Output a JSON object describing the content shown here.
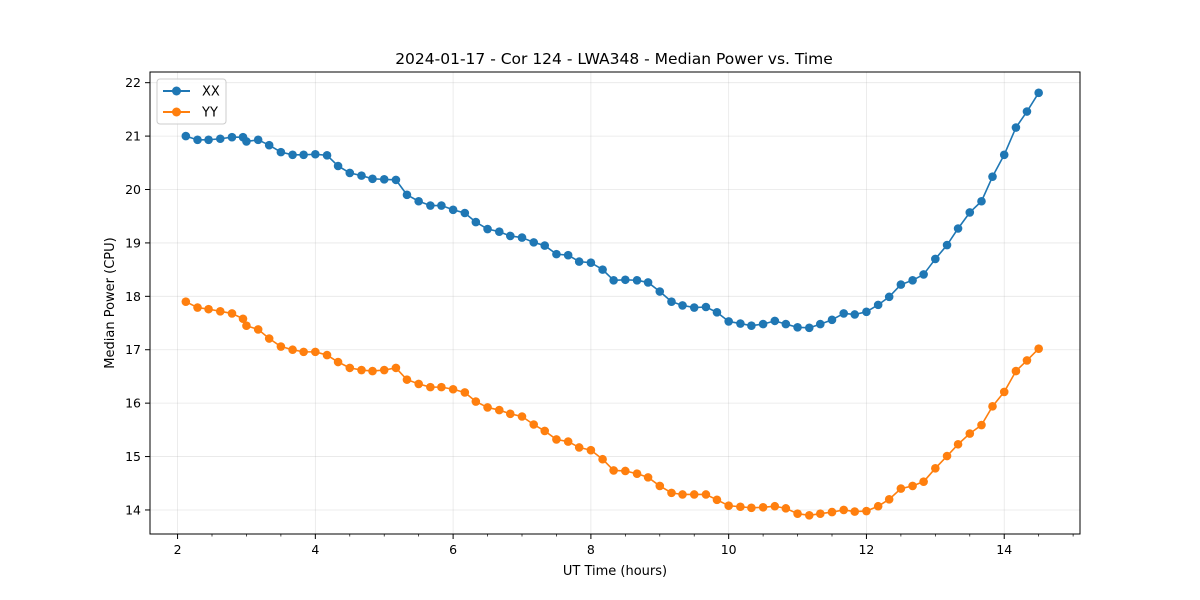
{
  "chart_data": {
    "type": "line",
    "title": "2024-01-17 - Cor 124 - LWA348 - Median Power vs. Time",
    "xlabel": "UT Time (hours)",
    "ylabel": "Median Power (CPU)",
    "xlim": [
      1.6,
      15.1
    ],
    "ylim": [
      13.55,
      22.2
    ],
    "xticks": [
      2,
      4,
      6,
      8,
      10,
      12,
      14
    ],
    "xtick_labels": [
      "2",
      "4",
      "6",
      "8",
      "10",
      "12",
      "14"
    ],
    "yticks": [
      14,
      15,
      16,
      17,
      18,
      19,
      20,
      21,
      22
    ],
    "ytick_labels": [
      "14",
      "15",
      "16",
      "17",
      "18",
      "19",
      "20",
      "21",
      "22"
    ],
    "grid": true,
    "legend_position": "top-left",
    "x": [
      2.12,
      2.29,
      2.45,
      2.62,
      2.79,
      2.95,
      3.0,
      3.17,
      3.33,
      3.5,
      3.67,
      3.83,
      4.0,
      4.17,
      4.33,
      4.5,
      4.67,
      4.83,
      5.0,
      5.17,
      5.33,
      5.5,
      5.67,
      5.83,
      6.0,
      6.17,
      6.33,
      6.5,
      6.67,
      6.83,
      7.0,
      7.17,
      7.33,
      7.5,
      7.67,
      7.83,
      8.0,
      8.17,
      8.33,
      8.5,
      8.67,
      8.83,
      9.0,
      9.17,
      9.33,
      9.5,
      9.67,
      9.83,
      10.0,
      10.17,
      10.33,
      10.5,
      10.67,
      10.83,
      11.0,
      11.17,
      11.33,
      11.5,
      11.67,
      11.83,
      12.0,
      12.17,
      12.33,
      12.5,
      12.67,
      12.83,
      13.0,
      13.17,
      13.33,
      13.5,
      13.67,
      13.83,
      14.0,
      14.17,
      14.33,
      14.5
    ],
    "series": [
      {
        "name": "XX",
        "color": "#1f77b4",
        "values": [
          21.0,
          20.93,
          20.93,
          20.95,
          20.98,
          20.98,
          20.9,
          20.93,
          20.83,
          20.7,
          20.65,
          20.65,
          20.66,
          20.64,
          20.44,
          20.31,
          20.26,
          20.2,
          20.19,
          20.18,
          19.9,
          19.78,
          19.7,
          19.7,
          19.62,
          19.56,
          19.39,
          19.26,
          19.21,
          19.13,
          19.1,
          19.01,
          18.95,
          18.79,
          18.77,
          18.65,
          18.63,
          18.5,
          18.3,
          18.31,
          18.3,
          18.26,
          18.09,
          17.9,
          17.83,
          17.79,
          17.8,
          17.7,
          17.53,
          17.49,
          17.45,
          17.48,
          17.54,
          17.48,
          17.42,
          17.41,
          17.48,
          17.56,
          17.68,
          17.66,
          17.71,
          17.84,
          17.99,
          18.22,
          18.3,
          18.41,
          18.7,
          18.96,
          19.27,
          19.57,
          19.78,
          20.24,
          20.65,
          21.16,
          21.46,
          21.81
        ]
      },
      {
        "name": "YY",
        "color": "#ff7f0e",
        "values": [
          17.9,
          17.79,
          17.76,
          17.72,
          17.68,
          17.58,
          17.45,
          17.38,
          17.21,
          17.06,
          17.0,
          16.96,
          16.96,
          16.9,
          16.77,
          16.66,
          16.62,
          16.6,
          16.62,
          16.66,
          16.44,
          16.36,
          16.3,
          16.3,
          16.26,
          16.2,
          16.03,
          15.92,
          15.87,
          15.8,
          15.75,
          15.6,
          15.48,
          15.32,
          15.28,
          15.17,
          15.12,
          14.95,
          14.74,
          14.73,
          14.68,
          14.61,
          14.45,
          14.32,
          14.29,
          14.29,
          14.29,
          14.19,
          14.08,
          14.06,
          14.04,
          14.05,
          14.07,
          14.03,
          13.93,
          13.9,
          13.93,
          13.96,
          14.0,
          13.97,
          13.98,
          14.07,
          14.2,
          14.4,
          14.45,
          14.53,
          14.78,
          15.01,
          15.23,
          15.43,
          15.59,
          15.94,
          16.21,
          16.6,
          16.8,
          17.02
        ]
      }
    ]
  }
}
